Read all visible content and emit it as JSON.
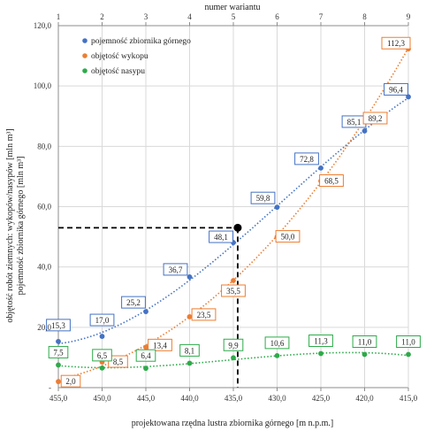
{
  "chart_data": {
    "type": "scatter",
    "x_bottom": {
      "title": "projektowana rzędna lustra zbiornika górnego [m n.p.m.]",
      "tick_labels": [
        "455,0",
        "450,0",
        "445,0",
        "440,0",
        "435,0",
        "430,0",
        "425,0",
        "420,0",
        "415,0"
      ],
      "values": [
        455,
        450,
        445,
        440,
        435,
        430,
        425,
        420,
        415
      ],
      "reversed": true
    },
    "x_top": {
      "title": "numer wariantu",
      "tick_labels": [
        "1",
        "2",
        "3",
        "4",
        "5",
        "6",
        "7",
        "8",
        "9"
      ]
    },
    "y": {
      "title_lines": [
        "objętość robót ziemnych: wykopów/nasypów [mln m³]",
        "pojemność zbiornika górnego [mln m³]"
      ],
      "tick_labels": [
        "-",
        "20,0",
        "40,0",
        "60,0",
        "80,0",
        "100,0",
        "120,0"
      ],
      "range": [
        0,
        120
      ],
      "grid": true
    },
    "series": [
      {
        "name": "pojemność zbiornika górnego",
        "color": "#4472C4",
        "trendline": "dotted",
        "values": [
          15.3,
          17.0,
          25.2,
          36.7,
          48.1,
          59.8,
          72.8,
          85.1,
          96.4
        ],
        "labels": [
          "15,3",
          "17,0",
          "25,2",
          "36,7",
          "48,1",
          "59,8",
          "72,8",
          "85,1",
          "96,4"
        ]
      },
      {
        "name": "objętość wykopu",
        "color": "#ED7D31",
        "trendline": "dotted",
        "values": [
          2.0,
          8.5,
          13.4,
          23.5,
          35.5,
          50.0,
          68.5,
          89.2,
          112.3
        ],
        "labels": [
          "2,0",
          "8,5",
          "13,4",
          "23,5",
          "35,5",
          "50,0",
          "68,5",
          "89,2",
          "112,3"
        ]
      },
      {
        "name": "objętość nasypu",
        "color": "#2EAA4A",
        "trendline": "dotted",
        "values": [
          7.5,
          6.5,
          6.4,
          8.1,
          9.9,
          10.6,
          11.3,
          11.0,
          11.0
        ],
        "labels": [
          "7,5",
          "6,5",
          "6,4",
          "8,1",
          "9,9",
          "10,6",
          "11,3",
          "11,0",
          "11,0"
        ]
      }
    ],
    "reference_point": {
      "x": 434.5,
      "y": 53.0,
      "line_style": "dashed"
    },
    "legend": {
      "placement": "top-left"
    }
  }
}
